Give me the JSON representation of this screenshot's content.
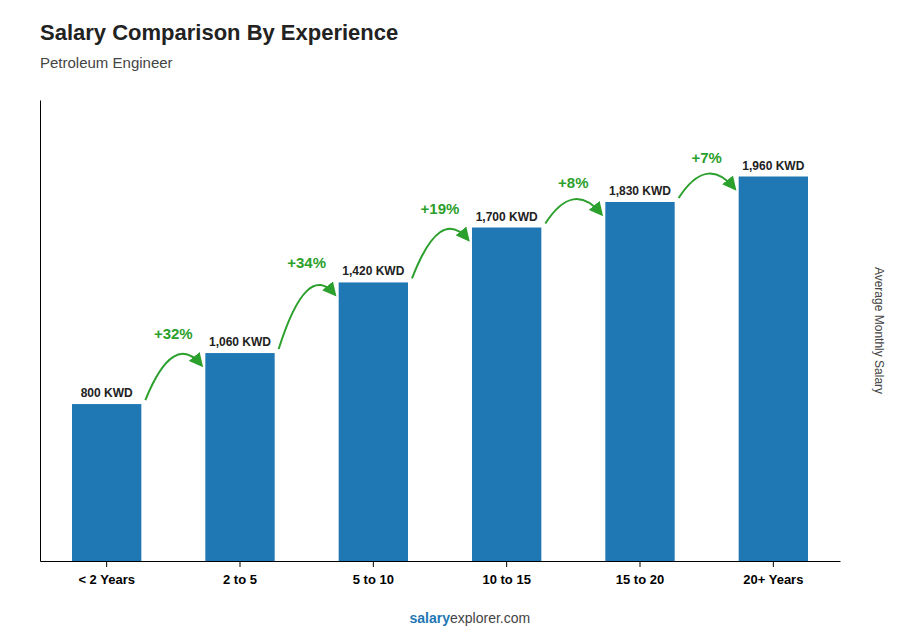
{
  "chart_data": {
    "type": "bar",
    "title": "Salary Comparison By Experience",
    "subtitle": "Petroleum Engineer",
    "categories": [
      "< 2 Years",
      "2 to 5",
      "5 to 10",
      "10 to 15",
      "15 to 20",
      "20+ Years"
    ],
    "values": [
      800,
      1060,
      1420,
      1700,
      1830,
      1960
    ],
    "value_labels": [
      "800 KWD",
      "1,060 KWD",
      "1,420 KWD",
      "1,700 KWD",
      "1,830 KWD",
      "1,960 KWD"
    ],
    "data_labels": true,
    "y_label": "Average Monthly Salary",
    "ylim": [
      0,
      2350
    ],
    "yticks": [],
    "tick_labels": "x",
    "annotations": [
      "+32%",
      "+34%",
      "+19%",
      "+8%",
      "+7%"
    ],
    "footer": [
      "salary",
      "explorer.com"
    ]
  }
}
